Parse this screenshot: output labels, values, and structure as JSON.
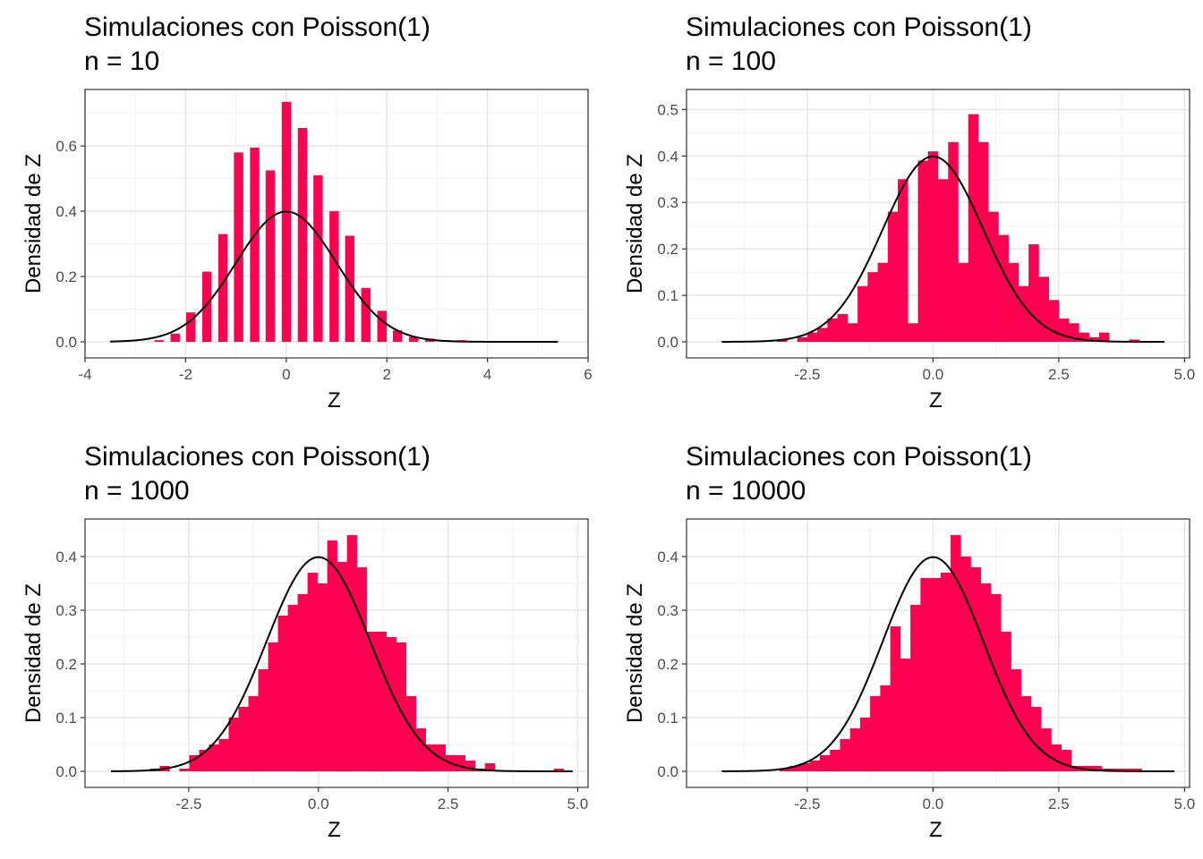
{
  "chart_data": [
    {
      "type": "bar",
      "title_line1": "Simulaciones con Poisson(1)",
      "title_line2": "n = 10",
      "xlabel": "Z",
      "ylabel": "Densidad de Z",
      "xlim": [
        -4,
        6
      ],
      "ylim": [
        0,
        0.74
      ],
      "xticks": [
        -4,
        -2,
        0,
        2,
        4,
        6
      ],
      "xtick_labels": [
        "-4",
        "-2",
        "0",
        "2",
        "4",
        "6"
      ],
      "yticks": [
        0,
        0.2,
        0.4,
        0.6
      ],
      "ytick_labels": [
        "0.0",
        "0.2",
        "0.4",
        "0.6"
      ],
      "bar_color": "#FF0050",
      "curve_color": "#000000",
      "curve": "normal density N(0,1)",
      "curve_range": [
        -3.5,
        5.4
      ],
      "bins_x": [
        -2.53,
        -2.21,
        -1.9,
        -1.58,
        -1.26,
        -0.95,
        -0.63,
        -0.32,
        0.0,
        0.32,
        0.63,
        0.95,
        1.26,
        1.58,
        1.9,
        2.21,
        2.53,
        2.85,
        3.16,
        3.48
      ],
      "bin_width": 0.18,
      "values": [
        0.005,
        0.025,
        0.09,
        0.215,
        0.33,
        0.58,
        0.595,
        0.525,
        0.735,
        0.655,
        0.51,
        0.4,
        0.325,
        0.165,
        0.095,
        0.035,
        0.015,
        0.01,
        0.005,
        0.005
      ]
    },
    {
      "type": "bar",
      "title_line1": "Simulaciones con Poisson(1)",
      "title_line2": "n = 100",
      "xlabel": "Z",
      "ylabel": "Densidad de Z",
      "xlim": [
        -4.9,
        5.1
      ],
      "ylim": [
        0,
        0.52
      ],
      "xticks": [
        -2.5,
        0,
        2.5,
        5
      ],
      "xtick_labels": [
        "-2.5",
        "0.0",
        "2.5",
        "5.0"
      ],
      "yticks": [
        0,
        0.1,
        0.2,
        0.3,
        0.4,
        0.5
      ],
      "ytick_labels": [
        "0.0",
        "0.1",
        "0.2",
        "0.3",
        "0.4",
        "0.5"
      ],
      "bar_color": "#FF0050",
      "curve_color": "#000000",
      "curve": "normal density N(0,1)",
      "curve_range": [
        -4.2,
        4.6
      ],
      "bin_start": -3.1,
      "bin_width": 0.2,
      "values": [
        0.005,
        0,
        0.01,
        0.02,
        0.03,
        0.05,
        0.06,
        0.04,
        0.12,
        0.15,
        0.17,
        0.28,
        0.35,
        0.04,
        0.39,
        0.41,
        0.35,
        0.43,
        0.17,
        0.49,
        0.43,
        0.28,
        0.23,
        0.17,
        0.12,
        0.21,
        0.14,
        0.09,
        0.05,
        0.04,
        0.02,
        0.01,
        0.02,
        0,
        0,
        0.005
      ]
    },
    {
      "type": "bar",
      "title_line1": "Simulaciones con Poisson(1)",
      "title_line2": "n = 1000",
      "xlabel": "Z",
      "ylabel": "Densidad de Z",
      "xlim": [
        -4.5,
        5.2
      ],
      "ylim": [
        0,
        0.45
      ],
      "xticks": [
        -2.5,
        0,
        2.5,
        5
      ],
      "xtick_labels": [
        "-2.5",
        "0.0",
        "2.5",
        "5.0"
      ],
      "yticks": [
        0,
        0.1,
        0.2,
        0.3,
        0.4
      ],
      "ytick_labels": [
        "0.0",
        "0.1",
        "0.2",
        "0.3",
        "0.4"
      ],
      "bar_color": "#FF0050",
      "curve_color": "#000000",
      "curve": "normal density N(0,1)",
      "curve_range": [
        -4.0,
        4.9
      ],
      "bin_start": -3.25,
      "bin_width": 0.19,
      "values": [
        0.005,
        0.01,
        0,
        0.005,
        0.03,
        0.04,
        0.05,
        0.06,
        0.1,
        0.12,
        0.14,
        0.19,
        0.24,
        0.29,
        0.31,
        0.33,
        0.37,
        0.35,
        0.43,
        0.39,
        0.44,
        0.38,
        0.26,
        0.26,
        0.25,
        0.24,
        0.14,
        0.08,
        0.05,
        0.05,
        0.03,
        0.03,
        0.02,
        0.005,
        0.015,
        0,
        0,
        0,
        0,
        0,
        0,
        0.005
      ]
    },
    {
      "type": "bar",
      "title_line1": "Simulaciones con Poisson(1)",
      "title_line2": "n = 10000",
      "xlabel": "Z",
      "ylabel": "Densidad de Z",
      "xlim": [
        -4.9,
        5.1
      ],
      "ylim": [
        0,
        0.45
      ],
      "xticks": [
        -2.5,
        0,
        2.5,
        5
      ],
      "xtick_labels": [
        "-2.5",
        "0.0",
        "2.5",
        "5.0"
      ],
      "yticks": [
        0,
        0.1,
        0.2,
        0.3,
        0.4
      ],
      "ytick_labels": [
        "0.0",
        "0.1",
        "0.2",
        "0.3",
        "0.4"
      ],
      "bar_color": "#FF0050",
      "curve_color": "#000000",
      "curve": "normal density N(0,1)",
      "curve_range": [
        -4.2,
        4.8
      ],
      "bin_start": -3.05,
      "bin_width": 0.2,
      "values": [
        0.005,
        0.01,
        0.015,
        0.02,
        0.03,
        0.04,
        0.06,
        0.08,
        0.1,
        0.14,
        0.16,
        0.27,
        0.21,
        0.31,
        0.36,
        0.36,
        0.37,
        0.44,
        0.4,
        0.38,
        0.35,
        0.33,
        0.26,
        0.19,
        0.14,
        0.12,
        0.08,
        0.05,
        0.04,
        0.01,
        0.01,
        0.01,
        0.005,
        0.005,
        0.005,
        0.005
      ]
    }
  ]
}
